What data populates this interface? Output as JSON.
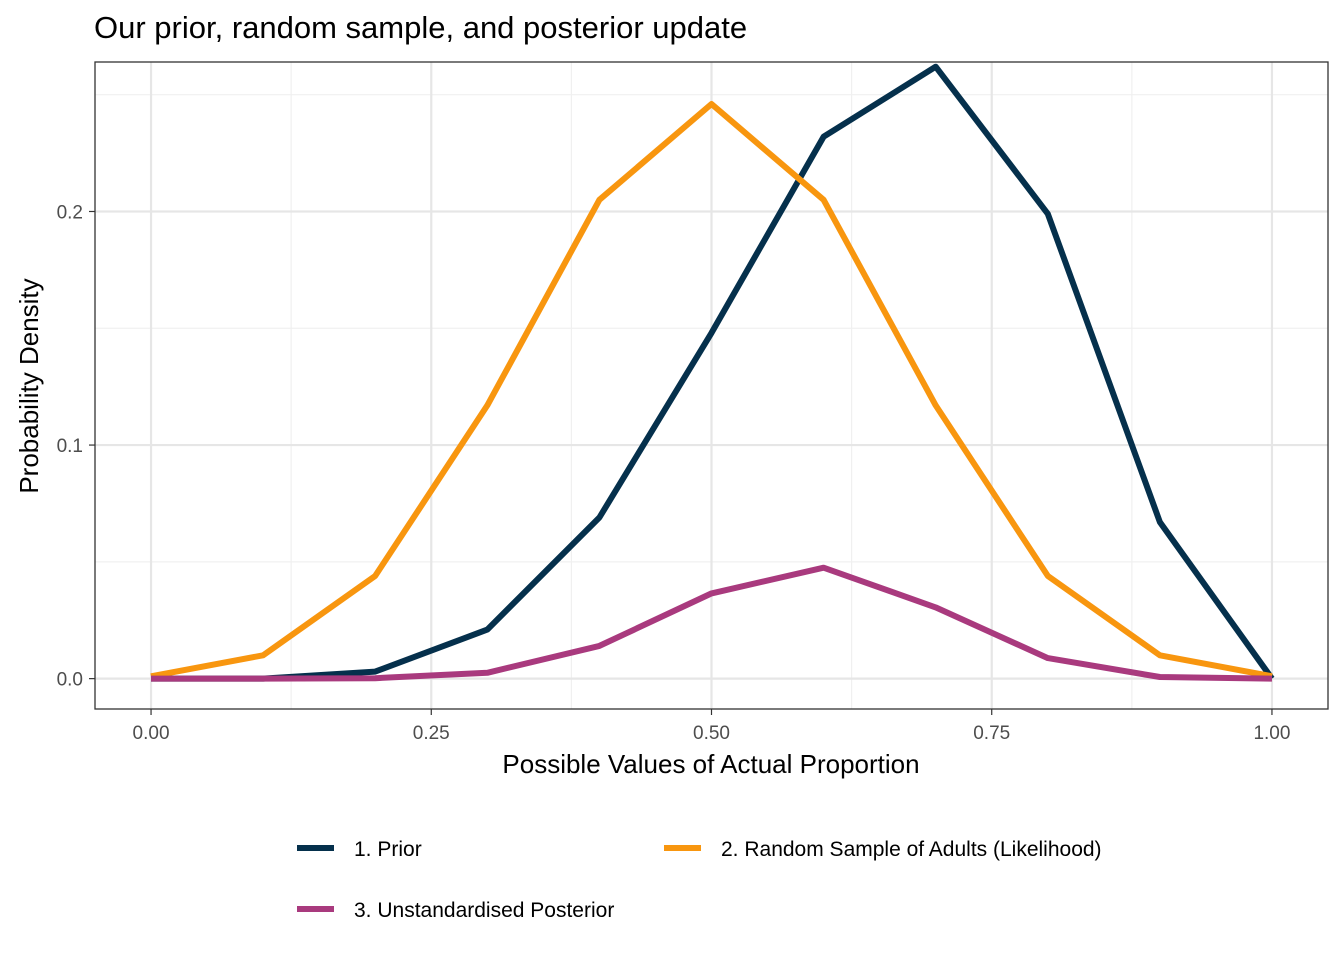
{
  "chart_data": {
    "type": "line",
    "title": "Our prior, random sample, and posterior update",
    "xlabel": "Possible Values of Actual Proportion",
    "ylabel": "Probability Density",
    "xlim": [
      -0.05,
      1.05
    ],
    "ylim": [
      -0.013,
      0.264
    ],
    "x_ticks": [
      0.0,
      0.25,
      0.5,
      0.75,
      1.0
    ],
    "x_tick_labels": [
      "0.00",
      "0.25",
      "0.50",
      "0.75",
      "1.00"
    ],
    "y_ticks": [
      0.0,
      0.1,
      0.2
    ],
    "y_tick_labels": [
      "0.0",
      "0.1",
      "0.2"
    ],
    "grid": true,
    "legend_position": "bottom",
    "x": [
      0.0,
      0.1,
      0.2,
      0.3,
      0.4,
      0.5,
      0.6,
      0.7,
      0.8,
      0.9,
      1.0
    ],
    "series": [
      {
        "name": "1. Prior",
        "color": "#05304c",
        "values": [
          0.0,
          0.0,
          0.003,
          0.021,
          0.069,
          0.148,
          0.232,
          0.262,
          0.199,
          0.067,
          0.0
        ]
      },
      {
        "name": "2. Random Sample of Adults (Likelihood)",
        "color": "#f8960f",
        "values": [
          0.001,
          0.01,
          0.044,
          0.117,
          0.205,
          0.246,
          0.205,
          0.117,
          0.044,
          0.01,
          0.001
        ]
      },
      {
        "name": "3. Unstandardised Posterior",
        "color": "#a93a7e",
        "values": [
          0.0,
          0.0,
          0.0002,
          0.0025,
          0.014,
          0.0365,
          0.0475,
          0.0305,
          0.0088,
          0.0007,
          0.0
        ]
      }
    ]
  }
}
